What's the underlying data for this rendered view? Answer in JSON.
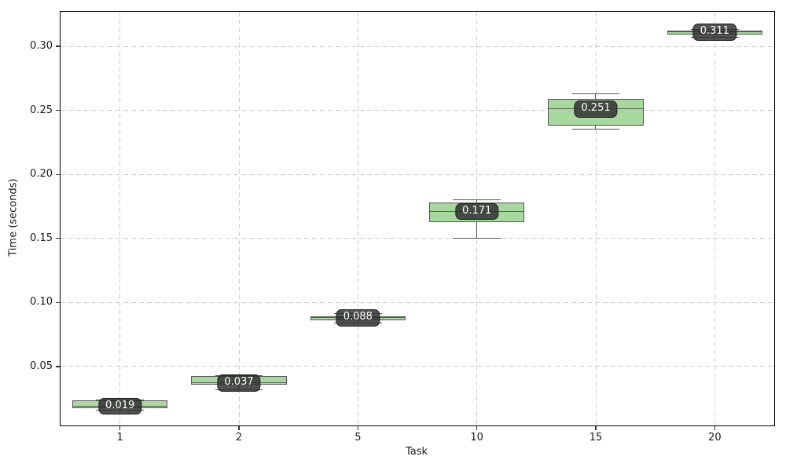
{
  "chart_data": {
    "type": "box",
    "title": "",
    "xlabel": "Task",
    "ylabel": "Time (seconds)",
    "categories": [
      "1",
      "2",
      "5",
      "10",
      "15",
      "20"
    ],
    "xlim": [
      0.5,
      6.5
    ],
    "ylim": [
      0.004,
      0.327
    ],
    "ytick_values": [
      0.05,
      0.1,
      0.15,
      0.2,
      0.25,
      0.3
    ],
    "ytick_labels": [
      "0.05",
      "0.10",
      "0.15",
      "0.20",
      "0.25",
      "0.30"
    ],
    "grid": true,
    "legend": null,
    "box_width_units": 0.8,
    "boxes": [
      {
        "category": "1",
        "whisker_low": 0.016,
        "q1": 0.0175,
        "median": 0.019,
        "q3": 0.0235,
        "whisker_high": 0.024,
        "label": "0.019"
      },
      {
        "category": "2",
        "whisker_low": 0.032,
        "q1": 0.036,
        "median": 0.037,
        "q3": 0.0425,
        "whisker_high": 0.043,
        "label": "0.037"
      },
      {
        "category": "5",
        "whisker_low": 0.084,
        "q1": 0.086,
        "median": 0.088,
        "q3": 0.0895,
        "whisker_high": 0.091,
        "label": "0.088"
      },
      {
        "category": "10",
        "whisker_low": 0.15,
        "q1": 0.163,
        "median": 0.171,
        "q3": 0.178,
        "whisker_high": 0.18,
        "label": "0.171"
      },
      {
        "category": "15",
        "whisker_low": 0.235,
        "q1": 0.238,
        "median": 0.251,
        "q3": 0.259,
        "whisker_high": 0.263,
        "label": "0.251"
      },
      {
        "category": "20",
        "whisker_low": 0.307,
        "q1": 0.309,
        "median": 0.311,
        "q3": 0.312,
        "whisker_high": 0.313,
        "label": "0.311"
      }
    ],
    "colors": {
      "box_fill": "#a8d8a0",
      "box_edge": "#555555",
      "median_line": "#5b5b5b",
      "whisker": "#555555",
      "grid": "#cccccc",
      "spine": "#000000",
      "tick_text": "#1a1a1a",
      "label_bg": "#2b2b2b",
      "label_border": "#1f1f1f",
      "label_text": "#ffffff"
    }
  }
}
